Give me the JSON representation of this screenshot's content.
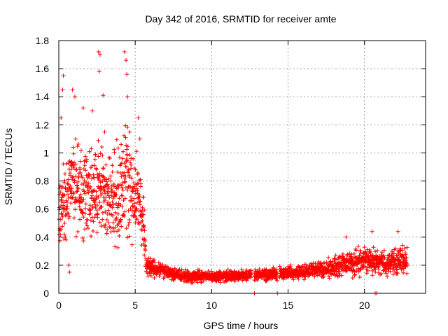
{
  "chart_data": {
    "type": "scatter",
    "title": "Day 342 of 2016, SRMTID for receiver amte",
    "xlabel": "GPS time / hours",
    "ylabel": "SRMTID / TECUs",
    "xlim": [
      0,
      24
    ],
    "ylim": [
      0,
      1.8
    ],
    "xticks": [
      "0",
      "5",
      "10",
      "15",
      "20"
    ],
    "xtick_values": [
      0,
      5,
      10,
      15,
      20
    ],
    "yticks": [
      "0",
      "0.2",
      "0.4",
      "0.6",
      "0.8",
      "1",
      "1.2",
      "1.4",
      "1.6",
      "1.8"
    ],
    "ytick_values": [
      0,
      0.2,
      0.4,
      0.6,
      0.8,
      1.0,
      1.2,
      1.4,
      1.6,
      1.8
    ],
    "grid": true,
    "marker": "plus",
    "color": "#ff0000",
    "series_name": "SRMTID",
    "envelope": [
      {
        "x": 0.0,
        "center": 0.65,
        "spread": 0.32
      },
      {
        "x": 0.5,
        "center": 0.68,
        "spread": 0.38
      },
      {
        "x": 1.0,
        "center": 0.8,
        "spread": 0.4
      },
      {
        "x": 1.5,
        "center": 0.7,
        "spread": 0.4
      },
      {
        "x": 2.0,
        "center": 0.75,
        "spread": 0.42
      },
      {
        "x": 2.5,
        "center": 0.72,
        "spread": 0.45
      },
      {
        "x": 3.0,
        "center": 0.7,
        "spread": 0.42
      },
      {
        "x": 3.5,
        "center": 0.65,
        "spread": 0.4
      },
      {
        "x": 4.0,
        "center": 0.72,
        "spread": 0.45
      },
      {
        "x": 4.5,
        "center": 0.8,
        "spread": 0.5
      },
      {
        "x": 5.0,
        "center": 0.65,
        "spread": 0.4
      },
      {
        "x": 5.5,
        "center": 0.6,
        "spread": 0.35
      },
      {
        "x": 5.7,
        "center": 0.2,
        "spread": 0.08
      },
      {
        "x": 6.5,
        "center": 0.17,
        "spread": 0.07
      },
      {
        "x": 8.0,
        "center": 0.12,
        "spread": 0.05
      },
      {
        "x": 10.0,
        "center": 0.12,
        "spread": 0.05
      },
      {
        "x": 12.5,
        "center": 0.13,
        "spread": 0.05
      },
      {
        "x": 15.0,
        "center": 0.14,
        "spread": 0.06
      },
      {
        "x": 17.0,
        "center": 0.17,
        "spread": 0.07
      },
      {
        "x": 18.5,
        "center": 0.2,
        "spread": 0.1
      },
      {
        "x": 20.0,
        "center": 0.24,
        "spread": 0.12
      },
      {
        "x": 21.5,
        "center": 0.22,
        "spread": 0.1
      },
      {
        "x": 22.8,
        "center": 0.24,
        "spread": 0.12
      }
    ],
    "data_range_x": [
      0.0,
      22.8
    ],
    "gaps_x": [
      [
        12.6,
        12.8
      ],
      [
        14.3,
        14.45
      ]
    ],
    "outliers": [
      {
        "x": 2.6,
        "y": 1.72
      },
      {
        "x": 2.7,
        "y": 1.7
      },
      {
        "x": 4.3,
        "y": 1.72
      },
      {
        "x": 4.4,
        "y": 1.66
      },
      {
        "x": 0.3,
        "y": 1.55
      },
      {
        "x": 4.45,
        "y": 1.56
      },
      {
        "x": 2.65,
        "y": 1.58
      },
      {
        "x": 0.25,
        "y": 1.45
      },
      {
        "x": 0.9,
        "y": 1.45
      },
      {
        "x": 1.05,
        "y": 1.4
      },
      {
        "x": 2.9,
        "y": 1.41
      },
      {
        "x": 4.5,
        "y": 1.4
      },
      {
        "x": 0.15,
        "y": 1.25
      },
      {
        "x": 5.2,
        "y": 1.25
      },
      {
        "x": 5.3,
        "y": 1.1
      },
      {
        "x": 1.6,
        "y": 1.32
      },
      {
        "x": 2.2,
        "y": 1.3
      },
      {
        "x": 3.0,
        "y": 1.15
      },
      {
        "x": 0.7,
        "y": 0.15
      },
      {
        "x": 0.65,
        "y": 0.2
      },
      {
        "x": 20.5,
        "y": 0.44
      },
      {
        "x": 22.2,
        "y": 0.44
      },
      {
        "x": 18.8,
        "y": 0.4
      }
    ],
    "near_zero_points": [
      {
        "x": 12.8,
        "y": 0.0
      },
      {
        "x": 14.3,
        "y": 0.0
      },
      {
        "x": 20.7,
        "y": 0.0
      },
      {
        "x": 20.8,
        "y": 0.0
      }
    ]
  }
}
